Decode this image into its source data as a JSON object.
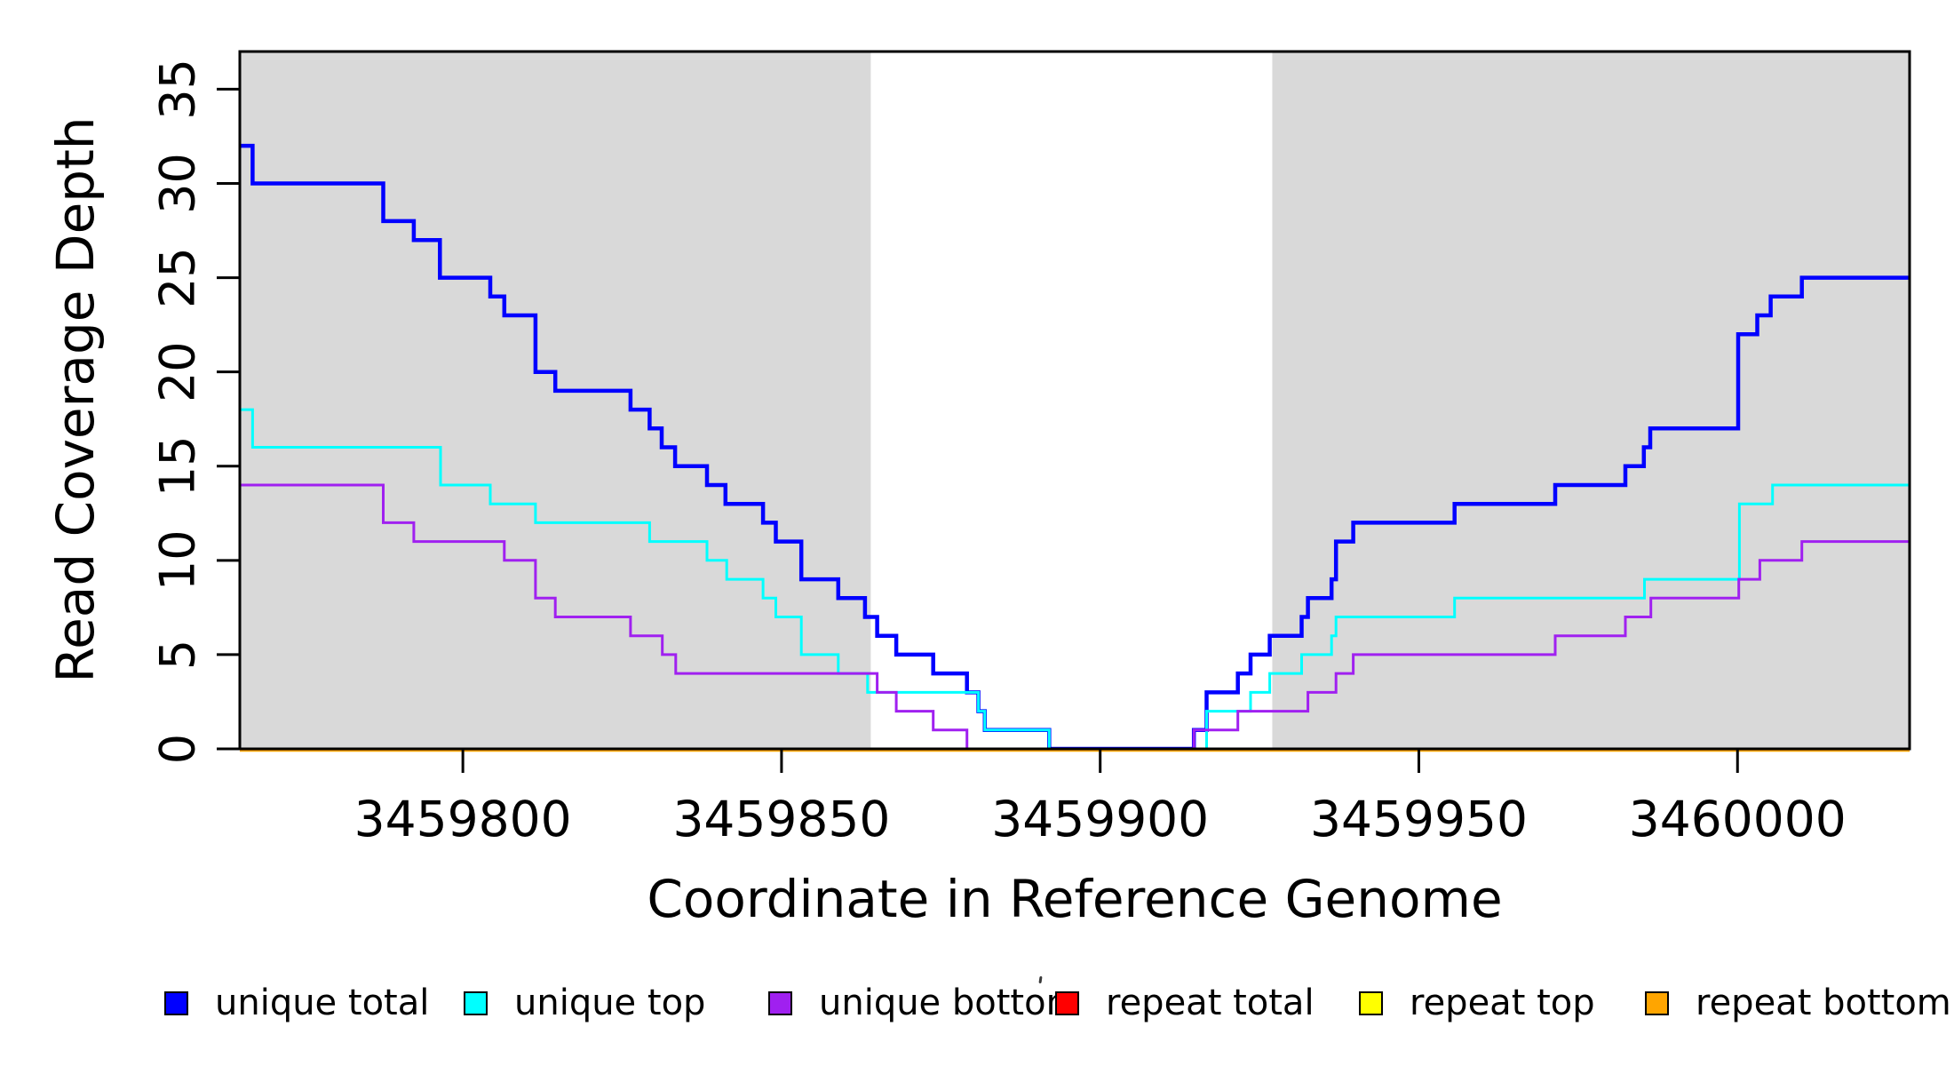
{
  "axes": {
    "x_title": "Coordinate in Reference Genome",
    "y_title": "Read Coverage Depth"
  },
  "legend": {
    "items": [
      {
        "label": "unique total",
        "color": "#0000ff"
      },
      {
        "label": "unique top",
        "color": "#00ffff"
      },
      {
        "label": "unique bottom",
        "color": "#a020f0"
      },
      {
        "label": "repeat total",
        "color": "#ff0000"
      },
      {
        "label": "repeat top",
        "color": "#ffff00"
      },
      {
        "label": "repeat bottom",
        "color": "#ffa500"
      }
    ]
  },
  "chart_data": {
    "type": "line",
    "subtype": "step-after",
    "title": "",
    "xlabel": "Coordinate in Reference Genome",
    "ylabel": "Read Coverage Depth",
    "xlim": [
      3459765,
      3460027
    ],
    "ylim": [
      0,
      37
    ],
    "grid": false,
    "legend_position": "bottom",
    "xticks": [
      3459800,
      3459850,
      3459900,
      3459950,
      3460000
    ],
    "yticks": [
      0,
      5,
      10,
      15,
      20,
      25,
      30,
      35
    ],
    "axis_color": "#000000",
    "shaded_regions": [
      {
        "x0": 3459765,
        "x1": 3459864,
        "color": "#d9d9d9"
      },
      {
        "x0": 3459927,
        "x1": 3460027,
        "color": "#d9d9d9"
      }
    ],
    "series": [
      {
        "name": "unique total",
        "color": "#0000ff",
        "width": 4.5,
        "dy": 0,
        "points": [
          [
            3459765,
            32
          ],
          [
            3459767,
            30
          ],
          [
            3459787.5,
            28
          ],
          [
            3459792.3,
            27
          ],
          [
            3459796.4,
            25
          ],
          [
            3459804.3,
            24
          ],
          [
            3459806.5,
            23
          ],
          [
            3459811.4,
            20
          ],
          [
            3459814.5,
            19
          ],
          [
            3459826.3,
            18
          ],
          [
            3459829.3,
            17
          ],
          [
            3459831.2,
            16
          ],
          [
            3459833.3,
            15
          ],
          [
            3459838.3,
            14
          ],
          [
            3459841.2,
            13
          ],
          [
            3459847.1,
            12
          ],
          [
            3459849.1,
            11
          ],
          [
            3459853.1,
            9
          ],
          [
            3459858.9,
            8
          ],
          [
            3459863.1,
            7
          ],
          [
            3459865,
            6
          ],
          [
            3459868,
            5
          ],
          [
            3459873.8,
            4
          ],
          [
            3459879.1,
            3
          ],
          [
            3459880.9,
            2
          ],
          [
            3459881.9,
            1
          ],
          [
            3459892,
            0
          ],
          [
            3459914.7,
            1
          ],
          [
            3459916.7,
            3
          ],
          [
            3459921.6,
            4
          ],
          [
            3459923.6,
            5
          ],
          [
            3459926.6,
            6
          ],
          [
            3459931.6,
            7
          ],
          [
            3459932.6,
            8
          ],
          [
            3459936.3,
            9
          ],
          [
            3459937,
            11
          ],
          [
            3459939.7,
            12
          ],
          [
            3459955.6,
            13
          ],
          [
            3459971.4,
            14
          ],
          [
            3459982.4,
            15
          ],
          [
            3459985.3,
            16
          ],
          [
            3459986.3,
            17
          ],
          [
            3460000.1,
            22
          ],
          [
            3460003.1,
            23
          ],
          [
            3460005.2,
            24
          ],
          [
            3460010.1,
            25
          ],
          [
            3460027,
            25
          ]
        ]
      },
      {
        "name": "unique top",
        "color": "#00ffff",
        "width": 3,
        "dy": 0,
        "points": [
          [
            3459765,
            18
          ],
          [
            3459767,
            16
          ],
          [
            3459796.5,
            14
          ],
          [
            3459804.3,
            13
          ],
          [
            3459811.4,
            12
          ],
          [
            3459829.3,
            11
          ],
          [
            3459838.3,
            10
          ],
          [
            3459841.4,
            9
          ],
          [
            3459847.1,
            8
          ],
          [
            3459849.1,
            7
          ],
          [
            3459853.1,
            5
          ],
          [
            3459858.9,
            4
          ],
          [
            3459863.5,
            3
          ],
          [
            3459880.9,
            2
          ],
          [
            3459881.9,
            1
          ],
          [
            3459892,
            0
          ],
          [
            3459916.7,
            2
          ],
          [
            3459923.6,
            3
          ],
          [
            3459926.6,
            4
          ],
          [
            3459931.6,
            5
          ],
          [
            3459936.3,
            6
          ],
          [
            3459937,
            7
          ],
          [
            3459955.6,
            8
          ],
          [
            3459985.4,
            9
          ],
          [
            3460000.3,
            13
          ],
          [
            3460005.5,
            14
          ],
          [
            3460027,
            14
          ]
        ]
      },
      {
        "name": "unique bottom",
        "color": "#a020f0",
        "width": 3,
        "dy": 0,
        "points": [
          [
            3459765,
            14
          ],
          [
            3459787.5,
            12
          ],
          [
            3459792.3,
            11
          ],
          [
            3459806.5,
            10
          ],
          [
            3459811.4,
            8
          ],
          [
            3459814.5,
            7
          ],
          [
            3459826.3,
            6
          ],
          [
            3459831.3,
            5
          ],
          [
            3459833.4,
            4
          ],
          [
            3459865,
            3
          ],
          [
            3459868,
            2
          ],
          [
            3459873.8,
            1
          ],
          [
            3459879.1,
            0
          ],
          [
            3459914.7,
            1
          ],
          [
            3459921.6,
            2
          ],
          [
            3459932.6,
            3
          ],
          [
            3459937,
            4
          ],
          [
            3459939.7,
            5
          ],
          [
            3459971.4,
            6
          ],
          [
            3459982.4,
            7
          ],
          [
            3459986.4,
            8
          ],
          [
            3460000.2,
            9
          ],
          [
            3460003.5,
            10
          ],
          [
            3460010.1,
            11
          ],
          [
            3460027,
            11
          ]
        ]
      },
      {
        "name": "repeat total",
        "color": "#ff0000",
        "width": 3,
        "dy": 0,
        "points": [
          [
            3459765,
            0
          ],
          [
            3460027,
            0
          ]
        ]
      },
      {
        "name": "repeat top",
        "color": "#ffff00",
        "width": 3,
        "dy": 0,
        "points": [
          [
            3459765,
            0
          ],
          [
            3460027,
            0
          ]
        ]
      },
      {
        "name": "repeat bottom",
        "color": "#ffa500",
        "width": 3.5,
        "dy": 1.5,
        "points": [
          [
            3459765,
            0
          ],
          [
            3460027,
            0
          ]
        ]
      }
    ]
  }
}
